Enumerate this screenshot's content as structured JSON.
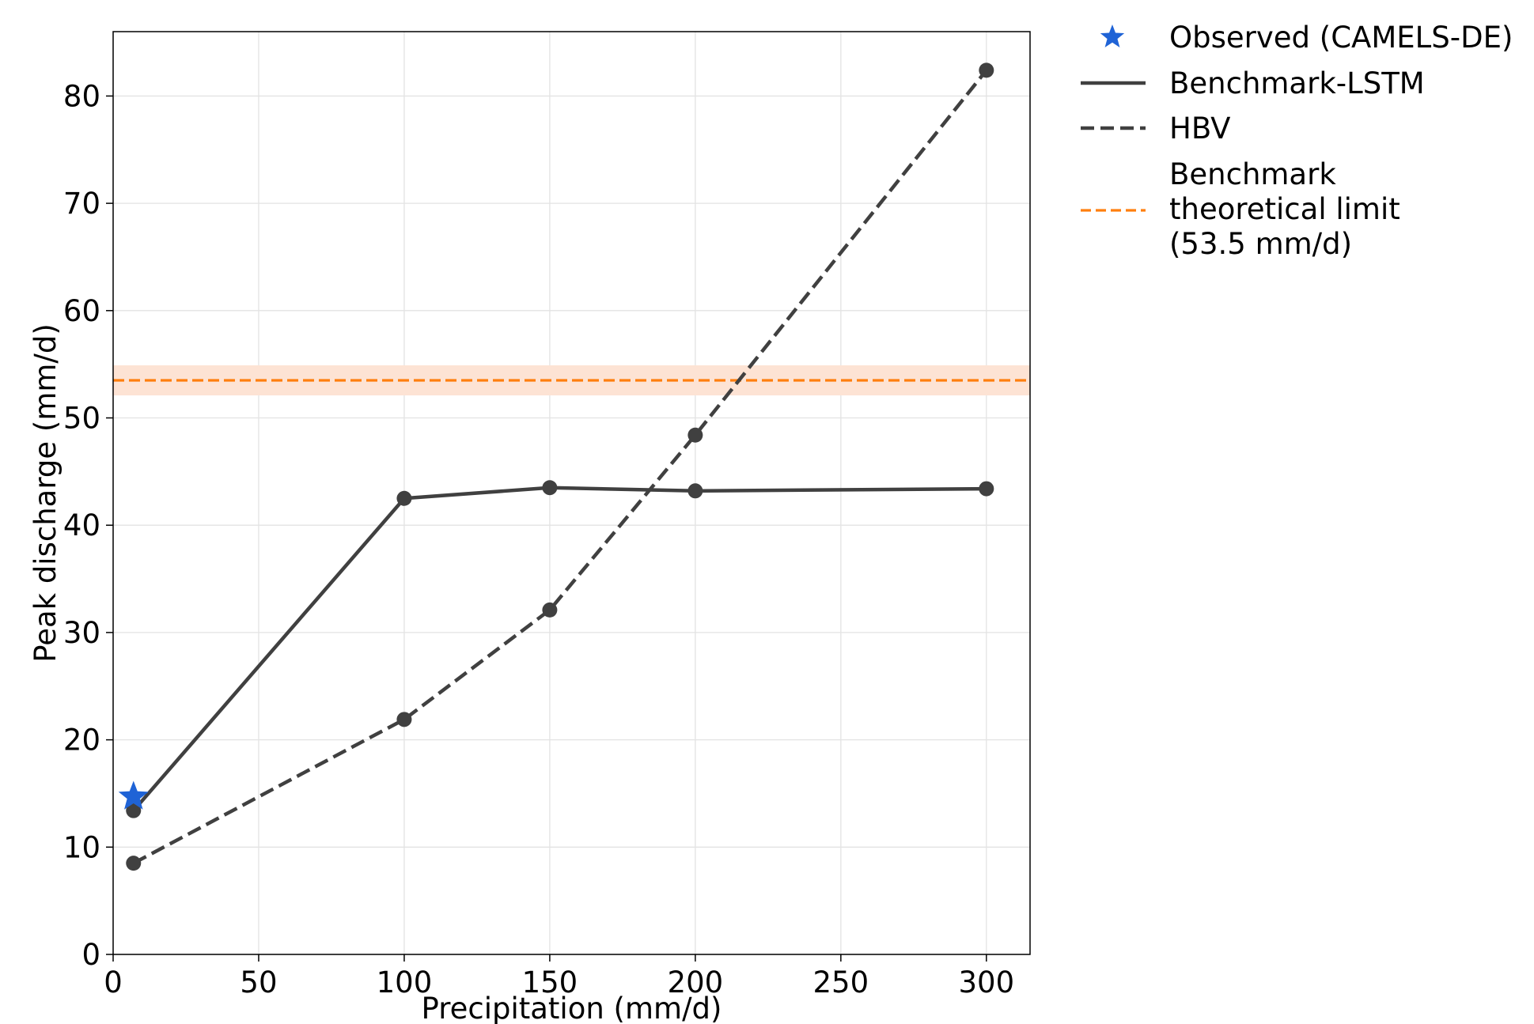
{
  "chart_data": {
    "type": "line",
    "xlabel": "Precipitation (mm/d)",
    "ylabel": "Peak discharge (mm/d)",
    "xlim": [
      0,
      315
    ],
    "ylim": [
      0,
      86
    ],
    "xticks": [
      0,
      50,
      100,
      150,
      200,
      250,
      300
    ],
    "yticks": [
      0,
      10,
      20,
      30,
      40,
      50,
      60,
      70,
      80
    ],
    "grid": true,
    "legend_position": "outside-top-right",
    "series": [
      {
        "name": "Benchmark-LSTM",
        "style": "solid",
        "color": "#404040",
        "marker": "circle",
        "x": [
          7,
          100,
          150,
          200,
          300
        ],
        "y": [
          13.4,
          42.5,
          43.5,
          43.2,
          43.4
        ]
      },
      {
        "name": "HBV",
        "style": "dashed",
        "color": "#404040",
        "marker": "circle",
        "x": [
          7,
          100,
          150,
          200,
          300
        ],
        "y": [
          8.5,
          21.9,
          32.1,
          48.4,
          82.4
        ]
      }
    ],
    "observed": {
      "name": "Observed (CAMELS-DE)",
      "color": "#1f63d6",
      "marker": "star",
      "x": 7,
      "y": 14.7
    },
    "limit": {
      "name_lines": [
        "Benchmark",
        "theoretical limit",
        "(53.5 mm/d)"
      ],
      "y": 53.5,
      "band": [
        52.1,
        54.9
      ],
      "color": "#ff7f0e",
      "band_color": "#fde3d4",
      "style": "dashed"
    }
  }
}
